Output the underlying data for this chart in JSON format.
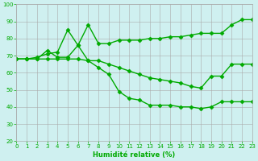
{
  "xlabel": "Humidité relative (%)",
  "background_color": "#cff0f0",
  "line_color": "#00aa00",
  "marker": "D",
  "markersize": 2.5,
  "linewidth": 1.0,
  "ylim": [
    20,
    100
  ],
  "xlim": [
    0,
    23
  ],
  "yticks": [
    20,
    30,
    40,
    50,
    60,
    70,
    80,
    90,
    100
  ],
  "xticks": [
    0,
    1,
    2,
    3,
    4,
    5,
    6,
    7,
    8,
    9,
    10,
    11,
    12,
    13,
    14,
    15,
    16,
    17,
    18,
    19,
    20,
    21,
    22,
    23
  ],
  "line1_x": [
    0,
    1,
    2,
    3,
    4,
    5,
    6,
    7,
    8,
    9,
    10,
    11,
    12,
    13,
    14,
    15,
    16,
    17,
    18,
    19,
    20,
    21,
    22,
    23
  ],
  "line1_y": [
    68,
    68,
    69,
    71,
    72,
    85,
    76,
    88,
    77,
    77,
    79,
    79,
    79,
    80,
    80,
    81,
    81,
    82,
    83,
    83,
    83,
    88,
    91,
    91
  ],
  "line2_x": [
    0,
    1,
    2,
    3,
    4,
    5,
    6,
    7,
    8,
    9,
    10,
    11,
    12,
    13,
    14,
    15,
    16,
    17,
    18,
    19,
    20,
    21,
    22,
    23
  ],
  "line2_y": [
    68,
    68,
    68,
    73,
    69,
    69,
    76,
    67,
    67,
    65,
    63,
    61,
    59,
    57,
    56,
    55,
    54,
    52,
    51,
    58,
    58,
    65,
    65,
    65
  ],
  "line3_x": [
    0,
    1,
    2,
    3,
    4,
    5,
    6,
    7,
    8,
    9,
    10,
    11,
    12,
    13,
    14,
    15,
    16,
    17,
    18,
    19,
    20,
    21,
    22,
    23
  ],
  "line3_y": [
    68,
    68,
    68,
    68,
    68,
    68,
    68,
    67,
    63,
    59,
    49,
    45,
    44,
    41,
    41,
    41,
    40,
    40,
    39,
    40,
    43,
    43,
    43,
    43
  ]
}
